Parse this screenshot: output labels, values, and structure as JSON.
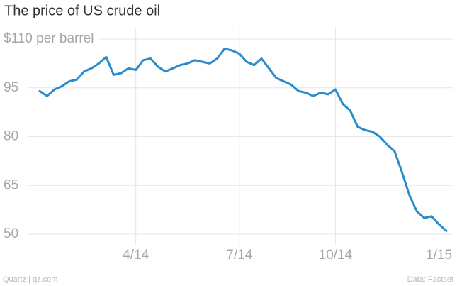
{
  "chart_data": {
    "type": "line",
    "title": "The price of US crude oil",
    "categories": [
      null,
      null,
      null,
      null,
      null,
      null,
      null,
      null,
      null,
      null,
      null,
      null,
      null,
      "4/14",
      null,
      null,
      null,
      null,
      null,
      null,
      null,
      null,
      null,
      null,
      null,
      null,
      null,
      "7/14",
      null,
      null,
      null,
      null,
      null,
      null,
      null,
      null,
      null,
      null,
      null,
      null,
      "10/14",
      null,
      null,
      null,
      null,
      null,
      null,
      null,
      null,
      null,
      null,
      null,
      null,
      null,
      "1/15",
      null
    ],
    "values": [
      94,
      92.5,
      94.5,
      95.5,
      97,
      97.5,
      100,
      101,
      102.5,
      104.5,
      99,
      99.5,
      101,
      100.5,
      103.5,
      104,
      101.5,
      100,
      101,
      102,
      102.5,
      103.5,
      103,
      102.5,
      104,
      107,
      106.5,
      105.5,
      103,
      102,
      104,
      101,
      98,
      97,
      96,
      94,
      93.5,
      92.5,
      93.5,
      93,
      94.5,
      90,
      88,
      83,
      82,
      81.5,
      80,
      77.5,
      75.5,
      69,
      62,
      57,
      55,
      55.5,
      53,
      51
    ],
    "color": "#2a8bcc",
    "ylim": [
      47,
      112
    ],
    "yticks": [
      50,
      65,
      80,
      95,
      {
        "value": 110,
        "label": "$110 per barrel"
      }
    ],
    "grid": true,
    "source": "Data: Factset",
    "credit": "Quartz | qz.com"
  }
}
